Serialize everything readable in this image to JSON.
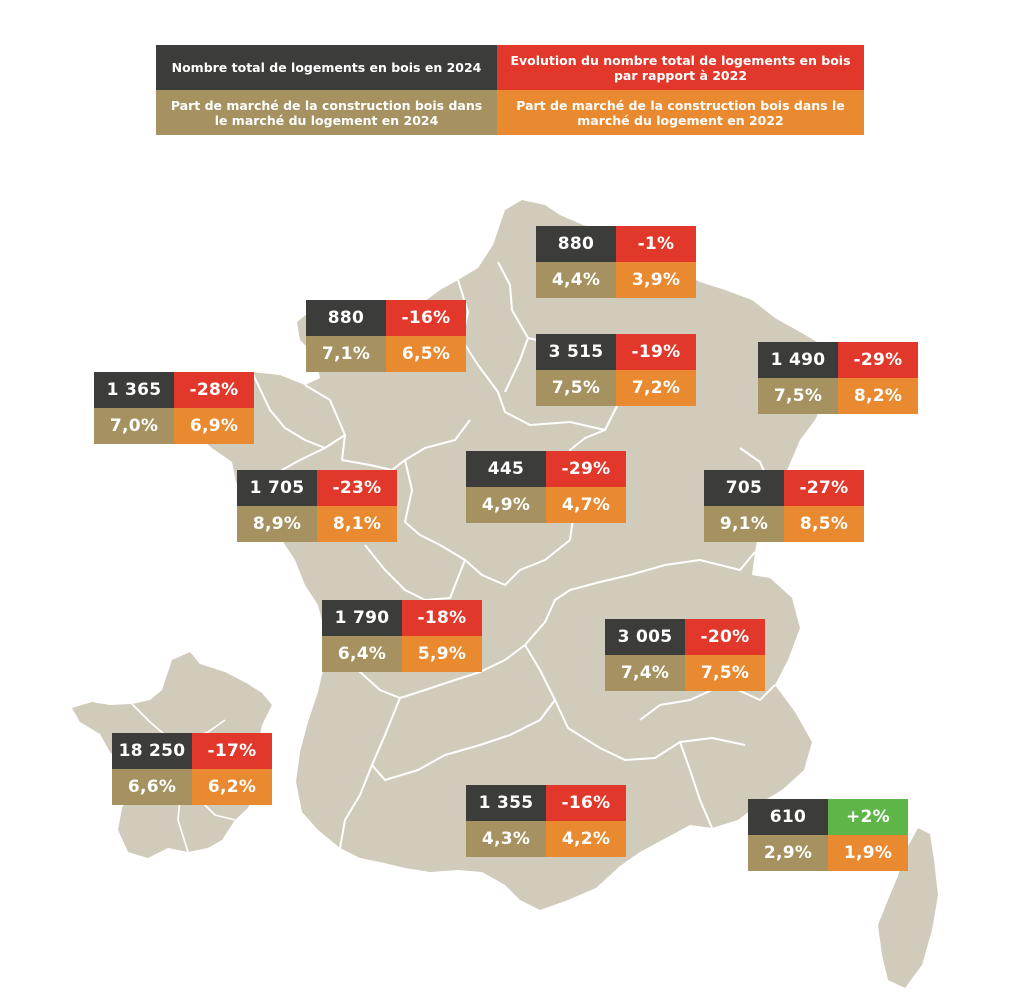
{
  "legend": {
    "total_2024": "Nombre total de logements en bois en 2024",
    "evolution": "Evolution du nombre total de logements en bois par rapport à 2022",
    "share_2024": "Part de marché de la construction bois dans le marché du logement en 2024",
    "share_2022": "Part de marché de la construction bois dans le marché du logement en 2022"
  },
  "colors": {
    "total": "#3c3c3a",
    "evolution_negative": "#e2382b",
    "evolution_positive": "#5fb548",
    "share_2024": "#a69261",
    "share_2022": "#ea8a30",
    "map_fill": "#d1cbbb",
    "region_border": "#ffffff"
  },
  "regions": [
    {
      "total": "880",
      "evolution": "-1%",
      "share_2024": "4,4%",
      "share_2022": "3,9%"
    },
    {
      "total": "880",
      "evolution": "-16%",
      "share_2024": "7,1%",
      "share_2022": "6,5%"
    },
    {
      "total": "3 515",
      "evolution": "-19%",
      "share_2024": "7,5%",
      "share_2022": "7,2%"
    },
    {
      "total": "1 490",
      "evolution": "-29%",
      "share_2024": "7,5%",
      "share_2022": "8,2%"
    },
    {
      "total": "1 365",
      "evolution": "-28%",
      "share_2024": "7,0%",
      "share_2022": "6,9%"
    },
    {
      "total": "445",
      "evolution": "-29%",
      "share_2024": "4,9%",
      "share_2022": "4,7%"
    },
    {
      "total": "1 705",
      "evolution": "-23%",
      "share_2024": "8,9%",
      "share_2022": "8,1%"
    },
    {
      "total": "705",
      "evolution": "-27%",
      "share_2024": "9,1%",
      "share_2022": "8,5%"
    },
    {
      "total": "1 790",
      "evolution": "-18%",
      "share_2024": "6,4%",
      "share_2022": "5,9%"
    },
    {
      "total": "3 005",
      "evolution": "-20%",
      "share_2024": "7,4%",
      "share_2022": "7,5%"
    },
    {
      "total": "18 250",
      "evolution": "-17%",
      "share_2024": "6,6%",
      "share_2022": "6,2%"
    },
    {
      "total": "1 355",
      "evolution": "-16%",
      "share_2024": "4,3%",
      "share_2022": "4,2%"
    },
    {
      "total": "610",
      "evolution": "+2%",
      "share_2024": "2,9%",
      "share_2022": "1,9%"
    }
  ]
}
